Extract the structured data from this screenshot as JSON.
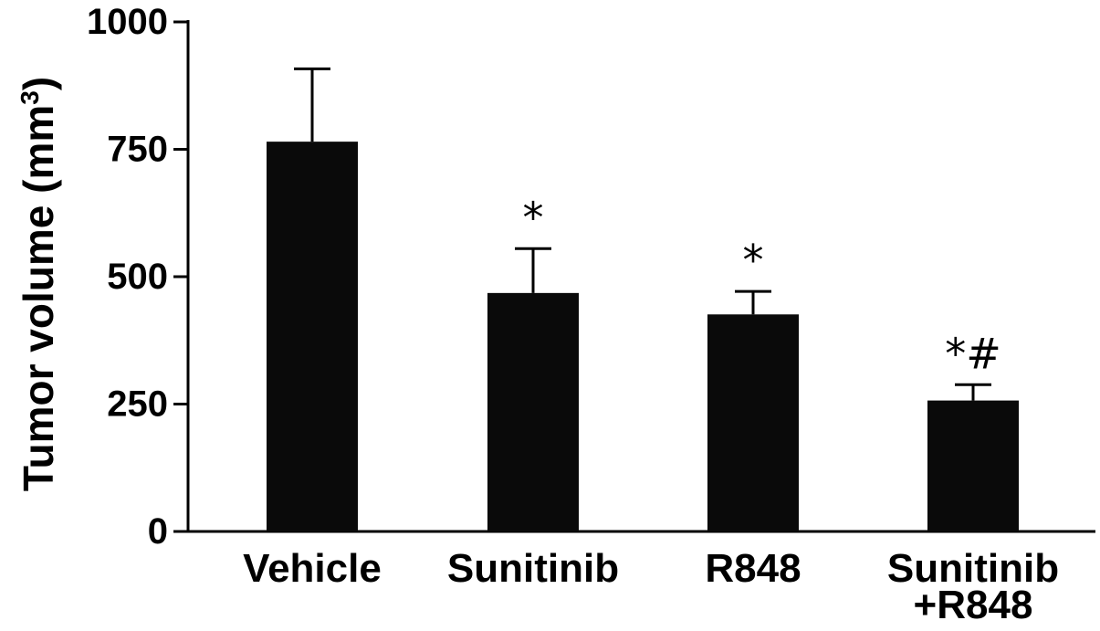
{
  "chart_data": {
    "type": "bar",
    "title": "",
    "xlabel": "",
    "ylabel": {
      "main": "Tumor volume (mm",
      "superscript": "3",
      "close": ")"
    },
    "ylim": [
      0,
      1000
    ],
    "yticks": [
      0,
      250,
      500,
      750,
      1000
    ],
    "ytick_labels": [
      "0",
      "250",
      "500",
      "750",
      "1000"
    ],
    "categories": [
      [
        "Vehicle"
      ],
      [
        "Sunitinib"
      ],
      [
        "R848"
      ],
      [
        "Sunitinib",
        "+R848"
      ]
    ],
    "values": [
      765,
      468,
      426,
      257
    ],
    "error_upper": [
      908,
      555,
      471,
      288
    ],
    "significance": [
      "",
      "*",
      "*",
      "*#"
    ],
    "bar_color": "#0a0a0a",
    "grid": false,
    "legend": "none"
  }
}
